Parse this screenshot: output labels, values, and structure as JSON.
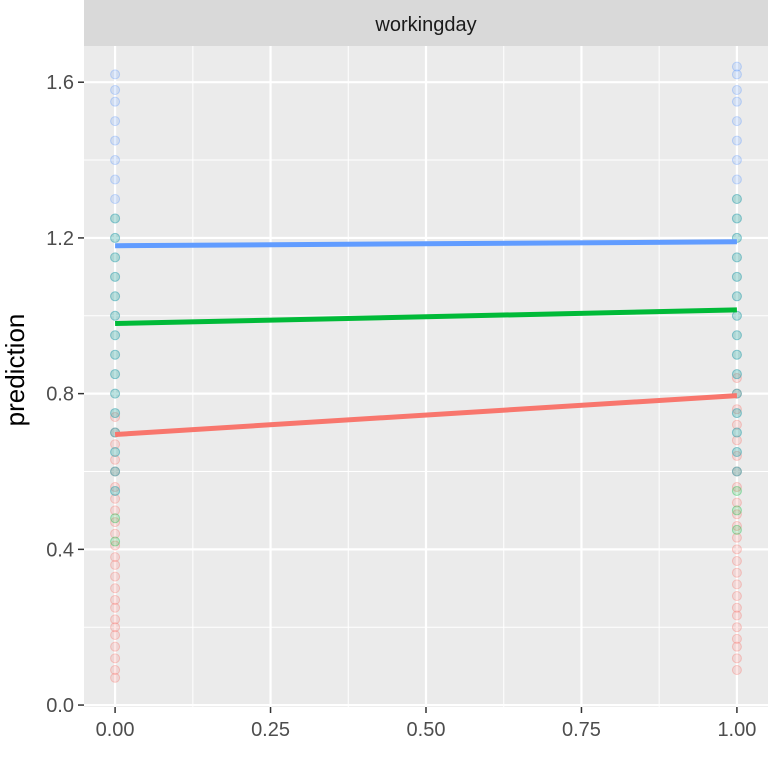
{
  "chart_data": {
    "type": "scatter",
    "facet_label": "workingday",
    "xlabel": "",
    "ylabel": "prediction",
    "xlim": [
      -0.05,
      1.05
    ],
    "ylim": [
      0.0,
      1.6
    ],
    "x_ticks": [
      0.0,
      0.25,
      0.5,
      0.75,
      1.0
    ],
    "x_tick_labels": [
      "0.00",
      "0.25",
      "0.50",
      "0.75",
      "1.00"
    ],
    "y_ticks": [
      0.0,
      0.4,
      0.8,
      1.2,
      1.6
    ],
    "y_tick_labels": [
      "0.0",
      "0.4",
      "0.8",
      "1.2",
      "1.6"
    ],
    "grid": true,
    "panel_background": "#ebebeb",
    "strip_background": "#d9d9d9",
    "series": [
      {
        "color": "#f8766d",
        "line": {
          "x": [
            0.0,
            1.0
          ],
          "y": [
            0.695,
            0.795
          ]
        },
        "points_x0": [
          0.07,
          0.09,
          0.12,
          0.15,
          0.18,
          0.2,
          0.22,
          0.25,
          0.27,
          0.3,
          0.33,
          0.36,
          0.38,
          0.41,
          0.44,
          0.47,
          0.5,
          0.53,
          0.56,
          0.6,
          0.63,
          0.67,
          0.7,
          0.74
        ],
        "points_x1": [
          0.09,
          0.12,
          0.15,
          0.17,
          0.2,
          0.23,
          0.25,
          0.28,
          0.31,
          0.34,
          0.37,
          0.4,
          0.43,
          0.46,
          0.49,
          0.52,
          0.56,
          0.6,
          0.64,
          0.68,
          0.72,
          0.76,
          0.8,
          0.84
        ]
      },
      {
        "color": "#00ba38",
        "line": {
          "x": [
            0.0,
            1.0
          ],
          "y": [
            0.98,
            1.015
          ]
        },
        "points_x0": [
          0.42,
          0.48,
          0.55,
          0.6,
          0.65,
          0.7,
          0.75,
          0.8,
          0.85,
          0.9,
          0.95,
          1.0,
          1.05,
          1.1,
          1.15,
          1.2,
          1.25
        ],
        "points_x1": [
          0.45,
          0.5,
          0.55,
          0.6,
          0.65,
          0.7,
          0.75,
          0.8,
          0.85,
          0.9,
          0.95,
          1.0,
          1.05,
          1.1,
          1.15,
          1.2,
          1.25,
          1.3
        ]
      },
      {
        "color": "#619cff",
        "line": {
          "x": [
            0.0,
            1.0
          ],
          "y": [
            1.18,
            1.19
          ]
        },
        "points_x0": [
          0.55,
          0.6,
          0.65,
          0.7,
          0.75,
          0.8,
          0.85,
          0.9,
          0.95,
          1.0,
          1.05,
          1.1,
          1.15,
          1.2,
          1.25,
          1.3,
          1.35,
          1.4,
          1.45,
          1.5,
          1.55,
          1.58,
          1.62
        ],
        "points_x1": [
          0.6,
          0.65,
          0.7,
          0.75,
          0.8,
          0.85,
          0.9,
          0.95,
          1.0,
          1.05,
          1.1,
          1.15,
          1.2,
          1.25,
          1.3,
          1.35,
          1.4,
          1.45,
          1.5,
          1.55,
          1.58,
          1.62,
          1.64
        ]
      }
    ]
  }
}
